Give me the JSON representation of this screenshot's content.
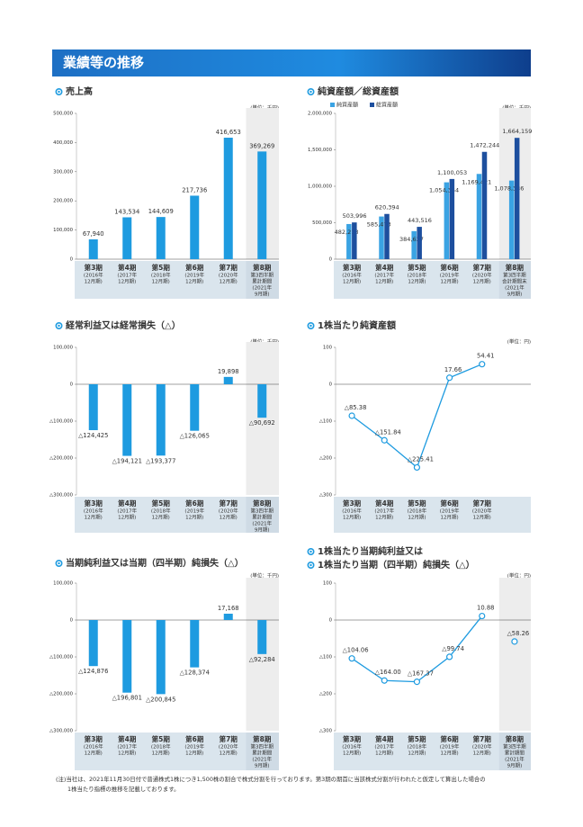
{
  "header": {
    "title": "業績等の推移"
  },
  "chart_data": [
    {
      "type": "bar",
      "title": [
        "売上高"
      ],
      "unit": "(単位：千円)",
      "color": "#1e9be0",
      "highlight_last": true,
      "categories": [
        [
          "第3期",
          "(2016年",
          "12月期)"
        ],
        [
          "第4期",
          "(2017年",
          "12月期)"
        ],
        [
          "第5期",
          "(2018年",
          "12月期)"
        ],
        [
          "第6期",
          "(2019年",
          "12月期)"
        ],
        [
          "第7期",
          "(2020年",
          "12月期)"
        ],
        [
          "第8期",
          "第3四半期",
          "累計期間",
          "(2021年",
          "9月期)"
        ]
      ],
      "values": [
        67940,
        143534,
        144609,
        217736,
        416653,
        369269
      ],
      "value_labels": [
        "67,940",
        "143,534",
        "144,609",
        "217,736",
        "416,653",
        "369,269"
      ],
      "ylim": [
        0,
        500000
      ],
      "yticks": [
        0,
        {
          "value": 100000,
          "label": "100,000"
        },
        {
          "value": 200000,
          "label": "200,000"
        },
        {
          "value": 300000,
          "label": "300,000"
        },
        {
          "value": 400000,
          "label": "400,000"
        },
        {
          "value": 500000,
          "label": "500,000"
        }
      ]
    },
    {
      "type": "bar",
      "title": [
        "純資産額／総資産額"
      ],
      "unit": "(単位：千円)",
      "highlight_last": true,
      "categories": [
        [
          "第3期",
          "(2016年",
          "12月期)"
        ],
        [
          "第4期",
          "(2017年",
          "12月期)"
        ],
        [
          "第5期",
          "(2018年",
          "12月期)"
        ],
        [
          "第6期",
          "(2019年",
          "12月期)"
        ],
        [
          "第7期",
          "(2020年",
          "12月期)"
        ],
        [
          "第8期",
          "第3四半期",
          "会計期間末",
          "(2021年",
          "9月期)"
        ]
      ],
      "series": [
        {
          "name": "純資産額",
          "color": "#3aa3e3",
          "values": [
            482213,
            585473,
            384627,
            1054354,
            1169421,
            1078336
          ],
          "value_labels": [
            "482,213",
            "585,473",
            "384,627",
            "1,054,354",
            "1,169,421",
            "1,078,336"
          ]
        },
        {
          "name": "総資産額",
          "color": "#1d4f9e",
          "values": [
            503996,
            620394,
            443516,
            1100053,
            1472244,
            1664159
          ],
          "value_labels": [
            "503,996",
            "620,394",
            "443,516",
            "1,100,053",
            "1,472,244",
            "1,664,159"
          ]
        }
      ],
      "ylim": [
        0,
        2000000
      ],
      "yticks": [
        0,
        {
          "value": 500000,
          "label": "500,000"
        },
        {
          "value": 1000000,
          "label": "1,000,000"
        },
        {
          "value": 1500000,
          "label": "1,500,000"
        },
        {
          "value": 2000000,
          "label": "2,000,000"
        }
      ]
    },
    {
      "type": "bar",
      "title": [
        "経常利益又は経常損失（△）"
      ],
      "unit": "(単位：千円)",
      "color": "#1e9be0",
      "highlight_last": true,
      "categories": [
        [
          "第3期",
          "(2016年",
          "12月期)"
        ],
        [
          "第4期",
          "(2017年",
          "12月期)"
        ],
        [
          "第5期",
          "(2018年",
          "12月期)"
        ],
        [
          "第6期",
          "(2019年",
          "12月期)"
        ],
        [
          "第7期",
          "(2020年",
          "12月期)"
        ],
        [
          "第8期",
          "第3四半期",
          "累計期間",
          "(2021年",
          "9月期)"
        ]
      ],
      "values": [
        -124425,
        -194121,
        -193377,
        -126065,
        19898,
        -90692
      ],
      "value_labels": [
        "△124,425",
        "△194,121",
        "△193,377",
        "△126,065",
        "19,898",
        "△90,692"
      ],
      "ylim": [
        -300000,
        100000
      ],
      "yticks": [
        {
          "value": -300000,
          "label": "△300,000"
        },
        {
          "value": -200000,
          "label": "△200,000"
        },
        {
          "value": -100000,
          "label": "△100,000"
        },
        0,
        {
          "value": 100000,
          "label": "100,000"
        }
      ]
    },
    {
      "type": "line",
      "title": [
        "1株当たり純資産額"
      ],
      "unit": "(単位：円)",
      "categories": [
        [
          "第3期",
          "(2016年",
          "12月期)"
        ],
        [
          "第4期",
          "(2017年",
          "12月期)"
        ],
        [
          "第5期",
          "(2018年",
          "12月期)"
        ],
        [
          "第6期",
          "(2019年",
          "12月期)"
        ],
        [
          "第7期",
          "(2020年",
          "12月期)"
        ]
      ],
      "series": [
        {
          "color": "#1e9be0",
          "values": [
            -85.38,
            -151.84,
            -225.41,
            17.66,
            54.41
          ],
          "value_labels": [
            "△85.38",
            "△151.84",
            "△225.41",
            "17.66",
            "54.41"
          ]
        }
      ],
      "ylim": [
        -300,
        100
      ],
      "yticks": [
        {
          "value": -300,
          "label": "△300"
        },
        {
          "value": -200,
          "label": "△200"
        },
        {
          "value": -100,
          "label": "△100"
        },
        0,
        100
      ]
    },
    {
      "type": "bar",
      "title": [
        "当期純利益又は当期（四半期）純損失（△）"
      ],
      "unit": "(単位：千円)",
      "color": "#1e9be0",
      "highlight_last": true,
      "categories": [
        [
          "第3期",
          "(2016年",
          "12月期)"
        ],
        [
          "第4期",
          "(2017年",
          "12月期)"
        ],
        [
          "第5期",
          "(2018年",
          "12月期)"
        ],
        [
          "第6期",
          "(2019年",
          "12月期)"
        ],
        [
          "第7期",
          "(2020年",
          "12月期)"
        ],
        [
          "第8期",
          "第3四半期",
          "累計期間",
          "(2021年",
          "9月期)"
        ]
      ],
      "values": [
        -124876,
        -196801,
        -200845,
        -128374,
        17168,
        -92284
      ],
      "value_labels": [
        "△124,876",
        "△196,801",
        "△200,845",
        "△128,374",
        "17,168",
        "△92,284"
      ],
      "ylim": [
        -300000,
        100000
      ],
      "yticks": [
        {
          "value": -300000,
          "label": "△300,000"
        },
        {
          "value": -200000,
          "label": "△200,000"
        },
        {
          "value": -100000,
          "label": "△100,000"
        },
        0,
        {
          "value": 100000,
          "label": "100,000"
        }
      ]
    },
    {
      "type": "line",
      "title": [
        "1株当たり当期純利益又は",
        "1株当たり当期（四半期）純損失（△）"
      ],
      "unit": "(単位：円)",
      "highlight_last": true,
      "categories": [
        [
          "第3期",
          "(2016年",
          "12月期)"
        ],
        [
          "第4期",
          "(2017年",
          "12月期)"
        ],
        [
          "第5期",
          "(2018年",
          "12月期)"
        ],
        [
          "第6期",
          "(2019年",
          "12月期)"
        ],
        [
          "第7期",
          "(2020年",
          "12月期)"
        ],
        [
          "第8期",
          "第3四半期",
          "累計期間",
          "(2021年",
          "9月期)"
        ]
      ],
      "series": [
        {
          "color": "#1e9be0",
          "values": [
            -104.06,
            -164.0,
            -167.37,
            -99.74,
            10.88,
            null
          ],
          "value_labels": [
            "△104.06",
            "△164.00",
            "△167.37",
            "△99.74",
            "10.88",
            null
          ]
        },
        {
          "color": "#1e9be0",
          "values": [
            null,
            null,
            null,
            null,
            null,
            -58.26
          ],
          "value_labels": [
            null,
            null,
            null,
            null,
            null,
            "△58.26"
          ]
        }
      ],
      "ylim": [
        -300,
        100
      ],
      "yticks": [
        {
          "value": -300,
          "label": "△300"
        },
        {
          "value": -200,
          "label": "△200"
        },
        {
          "value": -100,
          "label": "△100"
        },
        0,
        100
      ]
    }
  ],
  "notes": [
    "(注)当社は、2021年11月30日付で普通株式1株につき1,500株の割合で株式分割を行っております。第3期の期首に当該株式分割が行われたと仮定して算出した場合の",
    "1株当たり指標の推移を記載しております。"
  ]
}
